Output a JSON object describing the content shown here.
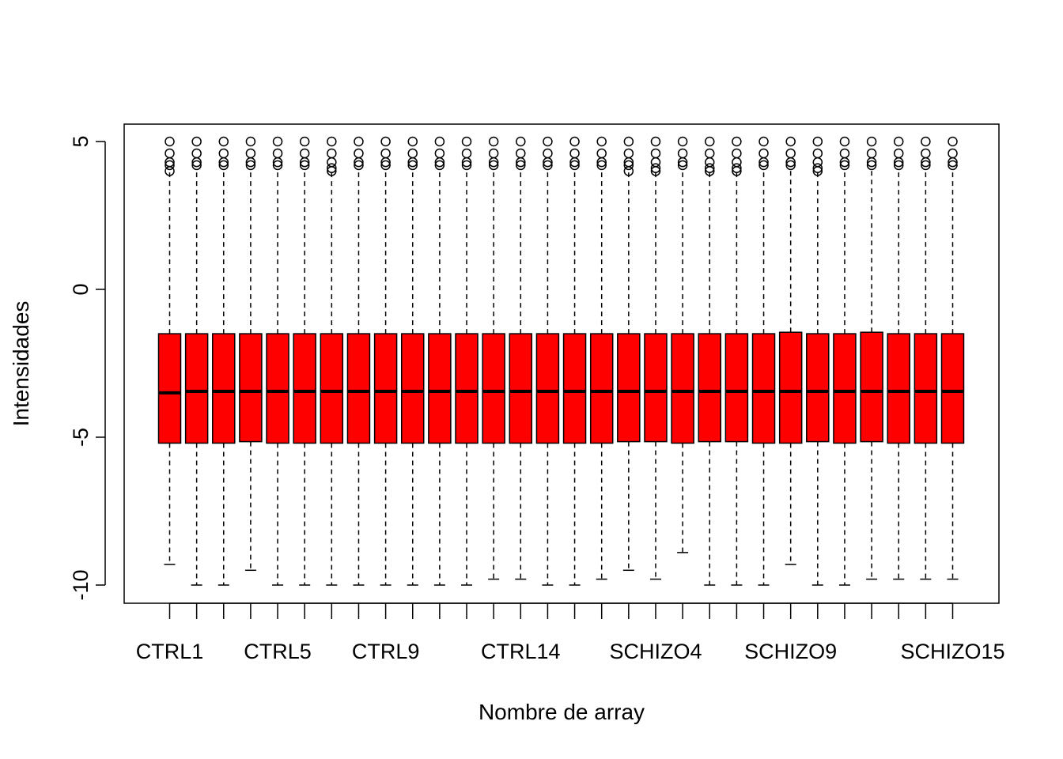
{
  "chart_data": {
    "type": "boxplot",
    "title": "",
    "xlabel": "Nombre de array",
    "ylabel": "Intensidades",
    "ylim": [
      -10.6,
      5.6
    ],
    "y_ticks": [
      5,
      0,
      -5,
      -10
    ],
    "y_tick_labels": [
      "5",
      "0",
      "-5",
      "-10"
    ],
    "box_color": "#ff0000",
    "visible_x_labels": [
      {
        "index": 0,
        "label": "CTRL1"
      },
      {
        "index": 4,
        "label": "CTRL5"
      },
      {
        "index": 8,
        "label": "CTRL9"
      },
      {
        "index": 13,
        "label": "CTRL14"
      },
      {
        "index": 18,
        "label": "SCHIZO4"
      },
      {
        "index": 23,
        "label": "SCHIZO9"
      },
      {
        "index": 29,
        "label": "SCHIZO15"
      }
    ],
    "boxes": [
      {
        "q1": -5.2,
        "median": -3.5,
        "q3": -1.5,
        "lower_whisker": -9.3,
        "outliers": [
          4.0,
          4.2,
          4.3,
          4.6,
          5.0
        ]
      },
      {
        "q1": -5.2,
        "median": -3.45,
        "q3": -1.5,
        "lower_whisker": -10.0,
        "outliers": [
          4.2,
          4.3,
          4.6,
          5.0
        ]
      },
      {
        "q1": -5.2,
        "median": -3.45,
        "q3": -1.5,
        "lower_whisker": -10.0,
        "outliers": [
          4.2,
          4.3,
          4.6,
          5.0
        ]
      },
      {
        "q1": -5.15,
        "median": -3.45,
        "q3": -1.5,
        "lower_whisker": -9.5,
        "outliers": [
          4.2,
          4.3,
          4.6,
          5.0
        ]
      },
      {
        "q1": -5.2,
        "median": -3.45,
        "q3": -1.5,
        "lower_whisker": -10.0,
        "outliers": [
          4.2,
          4.3,
          4.6,
          5.0
        ]
      },
      {
        "q1": -5.2,
        "median": -3.45,
        "q3": -1.5,
        "lower_whisker": -10.0,
        "outliers": [
          4.2,
          4.3,
          4.6,
          5.0
        ]
      },
      {
        "q1": -5.2,
        "median": -3.45,
        "q3": -1.5,
        "lower_whisker": -10.0,
        "outliers": [
          4.0,
          4.1,
          4.3,
          4.6,
          5.0
        ]
      },
      {
        "q1": -5.2,
        "median": -3.45,
        "q3": -1.5,
        "lower_whisker": -10.0,
        "outliers": [
          4.2,
          4.3,
          4.6,
          5.0
        ]
      },
      {
        "q1": -5.2,
        "median": -3.45,
        "q3": -1.5,
        "lower_whisker": -10.0,
        "outliers": [
          4.2,
          4.3,
          4.6,
          5.0
        ]
      },
      {
        "q1": -5.2,
        "median": -3.45,
        "q3": -1.5,
        "lower_whisker": -10.0,
        "outliers": [
          4.2,
          4.3,
          4.6,
          5.0
        ]
      },
      {
        "q1": -5.2,
        "median": -3.45,
        "q3": -1.5,
        "lower_whisker": -10.0,
        "outliers": [
          4.2,
          4.3,
          4.6,
          5.0
        ]
      },
      {
        "q1": -5.2,
        "median": -3.45,
        "q3": -1.5,
        "lower_whisker": -10.0,
        "outliers": [
          4.2,
          4.3,
          4.6,
          5.0
        ]
      },
      {
        "q1": -5.2,
        "median": -3.45,
        "q3": -1.5,
        "lower_whisker": -9.8,
        "outliers": [
          4.2,
          4.3,
          4.6,
          5.0
        ]
      },
      {
        "q1": -5.2,
        "median": -3.45,
        "q3": -1.5,
        "lower_whisker": -9.8,
        "outliers": [
          4.2,
          4.3,
          4.6,
          5.0
        ]
      },
      {
        "q1": -5.2,
        "median": -3.45,
        "q3": -1.5,
        "lower_whisker": -10.0,
        "outliers": [
          4.2,
          4.3,
          4.6,
          5.0
        ]
      },
      {
        "q1": -5.2,
        "median": -3.45,
        "q3": -1.5,
        "lower_whisker": -10.0,
        "outliers": [
          4.2,
          4.3,
          4.6,
          5.0
        ]
      },
      {
        "q1": -5.2,
        "median": -3.45,
        "q3": -1.5,
        "lower_whisker": -9.8,
        "outliers": [
          4.2,
          4.3,
          4.6,
          5.0
        ]
      },
      {
        "q1": -5.15,
        "median": -3.45,
        "q3": -1.5,
        "lower_whisker": -9.5,
        "outliers": [
          4.0,
          4.2,
          4.3,
          4.6,
          5.0
        ]
      },
      {
        "q1": -5.15,
        "median": -3.45,
        "q3": -1.5,
        "lower_whisker": -9.8,
        "outliers": [
          4.0,
          4.1,
          4.3,
          4.6,
          5.0
        ]
      },
      {
        "q1": -5.2,
        "median": -3.45,
        "q3": -1.5,
        "lower_whisker": -8.9,
        "outliers": [
          4.2,
          4.3,
          4.6,
          5.0
        ]
      },
      {
        "q1": -5.15,
        "median": -3.45,
        "q3": -1.5,
        "lower_whisker": -10.0,
        "outliers": [
          4.0,
          4.1,
          4.3,
          4.6,
          5.0
        ]
      },
      {
        "q1": -5.15,
        "median": -3.45,
        "q3": -1.5,
        "lower_whisker": -10.0,
        "outliers": [
          4.0,
          4.1,
          4.3,
          4.6,
          5.0
        ]
      },
      {
        "q1": -5.2,
        "median": -3.45,
        "q3": -1.5,
        "lower_whisker": -10.0,
        "outliers": [
          4.2,
          4.3,
          4.6,
          5.0
        ]
      },
      {
        "q1": -5.2,
        "median": -3.45,
        "q3": -1.45,
        "lower_whisker": -9.3,
        "outliers": [
          4.2,
          4.3,
          4.6,
          5.0
        ]
      },
      {
        "q1": -5.15,
        "median": -3.45,
        "q3": -1.5,
        "lower_whisker": -10.0,
        "outliers": [
          4.0,
          4.1,
          4.3,
          4.6,
          5.0
        ]
      },
      {
        "q1": -5.2,
        "median": -3.45,
        "q3": -1.5,
        "lower_whisker": -10.0,
        "outliers": [
          4.2,
          4.3,
          4.6,
          5.0
        ]
      },
      {
        "q1": -5.15,
        "median": -3.45,
        "q3": -1.45,
        "lower_whisker": -9.8,
        "outliers": [
          4.2,
          4.3,
          4.6,
          5.0
        ]
      },
      {
        "q1": -5.2,
        "median": -3.45,
        "q3": -1.5,
        "lower_whisker": -9.8,
        "outliers": [
          4.2,
          4.3,
          4.6,
          5.0
        ]
      },
      {
        "q1": -5.2,
        "median": -3.45,
        "q3": -1.5,
        "lower_whisker": -9.8,
        "outliers": [
          4.2,
          4.3,
          4.6,
          5.0
        ]
      },
      {
        "q1": -5.2,
        "median": -3.45,
        "q3": -1.5,
        "lower_whisker": -9.8,
        "outliers": [
          4.2,
          4.3,
          4.6,
          5.0
        ]
      }
    ],
    "upper_whisker_note": "",
    "grid": false,
    "legend": "none"
  }
}
